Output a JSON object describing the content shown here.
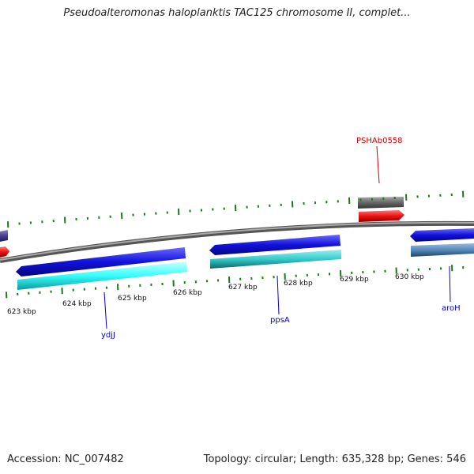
{
  "title": "Pseudoalteromonas haloplanktis TAC125 chromosome II, complet...",
  "footer": {
    "accession": "Accession: NC_007482",
    "summary": "Topology: circular; Length: 635,328 bp; Genes: 546"
  },
  "scale_labels": [
    "623 kbp",
    "624 kbp",
    "625 kbp",
    "626 kbp",
    "627 kbp",
    "628 kbp",
    "629 kbp",
    "630 kbp"
  ],
  "gene_labels": [
    {
      "text": "ydjJ",
      "color": "#0000cc"
    },
    {
      "text": "ppsA",
      "color": "#0000cc"
    },
    {
      "text": "aroH",
      "color": "#0000cc"
    },
    {
      "text": "PSHAb0558",
      "color": "#cc0000"
    }
  ],
  "colors": {
    "backbone": "#8c8c8c",
    "forward_gene": "#1111dd",
    "reverse_gene": "#ee1111",
    "cds_cyan": "#33ffff",
    "cds_teal": "#33cccc",
    "cds_steel": "#5588bb",
    "gray_feature": "#666666",
    "tick": "#1a7a1a",
    "purple_feature": "#4a3f8c"
  }
}
